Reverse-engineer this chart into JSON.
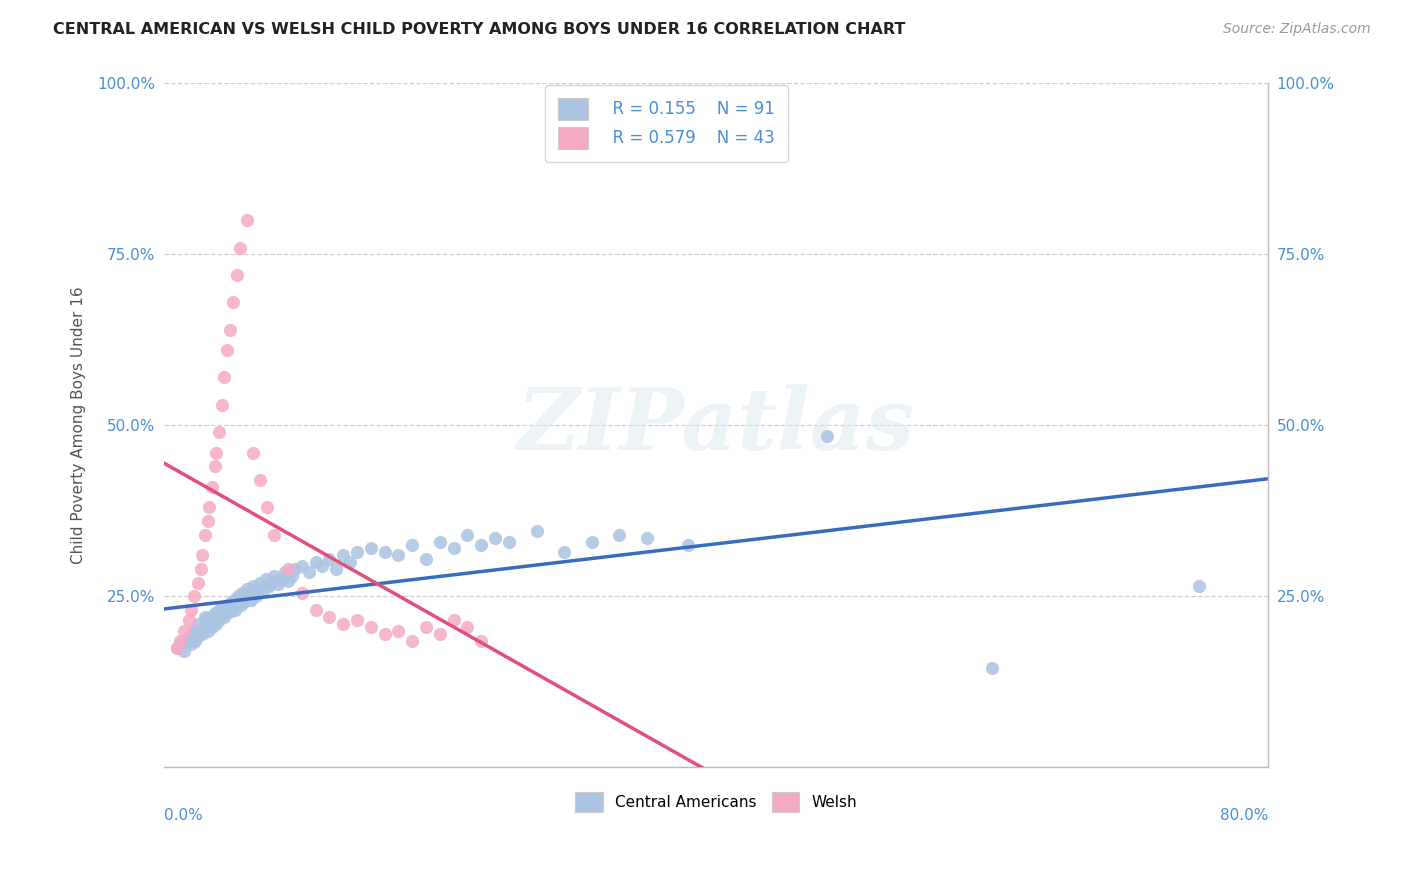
{
  "title": "CENTRAL AMERICAN VS WELSH CHILD POVERTY AMONG BOYS UNDER 16 CORRELATION CHART",
  "source": "Source: ZipAtlas.com",
  "ylabel": "Child Poverty Among Boys Under 16",
  "xmin": 0.0,
  "xmax": 0.8,
  "ymin": 0.0,
  "ymax": 1.0,
  "legend_R1": "0.155",
  "legend_N1": "91",
  "legend_R2": "0.579",
  "legend_N2": "43",
  "blue_scatter_color": "#aac4e2",
  "pink_scatter_color": "#f5aac4",
  "blue_line_color": "#3a6bbf",
  "pink_line_color": "#e0507a",
  "blue_text_color": "#4a8fd4",
  "watermark_text": "ZIPatlas",
  "ca_x": [
    0.01,
    0.012,
    0.015,
    0.018,
    0.02,
    0.02,
    0.022,
    0.023,
    0.024,
    0.025,
    0.025,
    0.027,
    0.028,
    0.03,
    0.03,
    0.031,
    0.032,
    0.033,
    0.034,
    0.035,
    0.036,
    0.037,
    0.038,
    0.039,
    0.04,
    0.04,
    0.041,
    0.042,
    0.043,
    0.044,
    0.045,
    0.046,
    0.047,
    0.048,
    0.049,
    0.05,
    0.051,
    0.052,
    0.053,
    0.054,
    0.055,
    0.056,
    0.057,
    0.058,
    0.06,
    0.062,
    0.063,
    0.065,
    0.067,
    0.068,
    0.07,
    0.072,
    0.074,
    0.076,
    0.078,
    0.08,
    0.083,
    0.085,
    0.088,
    0.09,
    0.093,
    0.095,
    0.1,
    0.105,
    0.11,
    0.115,
    0.12,
    0.125,
    0.13,
    0.135,
    0.14,
    0.15,
    0.16,
    0.17,
    0.18,
    0.19,
    0.2,
    0.21,
    0.22,
    0.23,
    0.24,
    0.25,
    0.27,
    0.29,
    0.31,
    0.33,
    0.35,
    0.38,
    0.48,
    0.6,
    0.75
  ],
  "ca_y": [
    0.175,
    0.18,
    0.17,
    0.185,
    0.195,
    0.18,
    0.2,
    0.185,
    0.19,
    0.195,
    0.21,
    0.2,
    0.195,
    0.22,
    0.205,
    0.215,
    0.2,
    0.21,
    0.22,
    0.205,
    0.215,
    0.225,
    0.21,
    0.22,
    0.23,
    0.215,
    0.225,
    0.235,
    0.225,
    0.22,
    0.23,
    0.225,
    0.235,
    0.24,
    0.228,
    0.235,
    0.245,
    0.23,
    0.24,
    0.25,
    0.245,
    0.238,
    0.255,
    0.242,
    0.26,
    0.255,
    0.245,
    0.265,
    0.25,
    0.26,
    0.27,
    0.258,
    0.275,
    0.265,
    0.27,
    0.28,
    0.268,
    0.275,
    0.285,
    0.272,
    0.28,
    0.29,
    0.295,
    0.285,
    0.3,
    0.295,
    0.305,
    0.29,
    0.31,
    0.3,
    0.315,
    0.32,
    0.315,
    0.31,
    0.325,
    0.305,
    0.33,
    0.32,
    0.34,
    0.325,
    0.335,
    0.33,
    0.345,
    0.315,
    0.33,
    0.34,
    0.335,
    0.325,
    0.485,
    0.145,
    0.265
  ],
  "welsh_x": [
    0.01,
    0.012,
    0.015,
    0.018,
    0.02,
    0.022,
    0.025,
    0.027,
    0.028,
    0.03,
    0.032,
    0.033,
    0.035,
    0.037,
    0.038,
    0.04,
    0.042,
    0.044,
    0.046,
    0.048,
    0.05,
    0.053,
    0.055,
    0.06,
    0.065,
    0.07,
    0.075,
    0.08,
    0.09,
    0.1,
    0.11,
    0.12,
    0.13,
    0.14,
    0.15,
    0.16,
    0.17,
    0.18,
    0.19,
    0.2,
    0.21,
    0.22,
    0.23
  ],
  "welsh_y": [
    0.175,
    0.185,
    0.2,
    0.215,
    0.23,
    0.25,
    0.27,
    0.29,
    0.31,
    0.34,
    0.36,
    0.38,
    0.41,
    0.44,
    0.46,
    0.49,
    0.53,
    0.57,
    0.61,
    0.64,
    0.68,
    0.72,
    0.76,
    0.8,
    0.46,
    0.42,
    0.38,
    0.34,
    0.29,
    0.255,
    0.23,
    0.22,
    0.21,
    0.215,
    0.205,
    0.195,
    0.2,
    0.185,
    0.205,
    0.195,
    0.215,
    0.205,
    0.185
  ]
}
